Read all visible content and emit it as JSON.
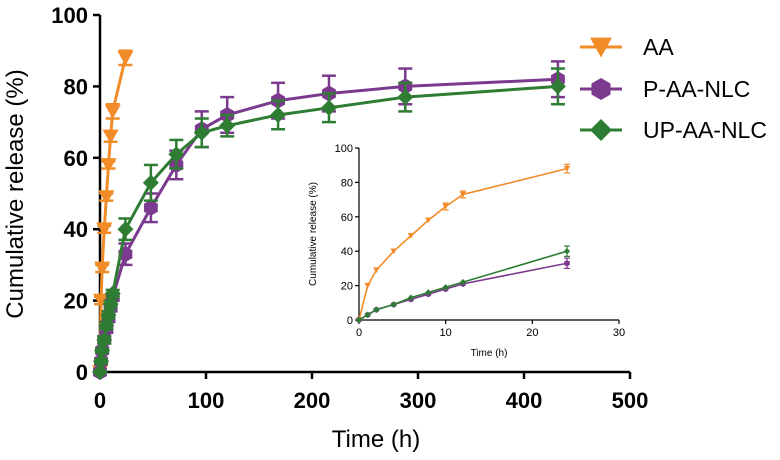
{
  "chart_data": [
    {
      "type": "line",
      "name": "main",
      "xlabel": "Time (h)",
      "ylabel": "Cumulative release (%)",
      "xlim": [
        0,
        500
      ],
      "ylim": [
        0,
        100
      ],
      "xticks": [
        "0",
        "100",
        "200",
        "300",
        "400",
        "500"
      ],
      "yticks": [
        "0",
        "20",
        "40",
        "60",
        "80",
        "100"
      ],
      "legend_position": "top-right",
      "series": [
        {
          "name": "AA",
          "color": "#F28C28",
          "marker": "triangle-down",
          "x": [
            0,
            1,
            2,
            4,
            6,
            8,
            10,
            12,
            24
          ],
          "y": [
            0,
            20,
            29,
            40,
            49,
            58,
            66,
            73,
            88
          ],
          "err": [
            0,
            1,
            1,
            1,
            1,
            1,
            1.5,
            2,
            2
          ]
        },
        {
          "name": "P-AA-NLC",
          "color": "#7B3A8E",
          "marker": "hexagon",
          "x": [
            0,
            1,
            2,
            4,
            6,
            8,
            10,
            12,
            24,
            48,
            72,
            96,
            120,
            168,
            216,
            288,
            432
          ],
          "y": [
            0,
            3,
            6,
            9,
            12,
            15,
            18,
            21,
            33,
            46,
            58,
            68,
            72,
            76,
            78,
            80,
            82
          ],
          "err": [
            0,
            0.5,
            0.5,
            1,
            1,
            1,
            1,
            1,
            3,
            4,
            4,
            5,
            5,
            5,
            5,
            5,
            5
          ]
        },
        {
          "name": "UP-AA-NLC",
          "color": "#2E7D32",
          "marker": "diamond",
          "x": [
            0,
            1,
            2,
            4,
            6,
            8,
            10,
            12,
            24,
            48,
            72,
            96,
            120,
            168,
            216,
            288,
            432
          ],
          "y": [
            0,
            3,
            6,
            9,
            13,
            16,
            19,
            22,
            40,
            53,
            61,
            67,
            69,
            72,
            74,
            77,
            80
          ],
          "err": [
            0,
            0.5,
            0.5,
            1,
            1,
            1,
            1,
            1,
            3,
            5,
            4,
            4,
            3,
            4,
            4,
            4,
            5
          ]
        }
      ]
    },
    {
      "type": "line",
      "name": "inset",
      "xlabel": "Time (h)",
      "ylabel": "Cumulative release (%)",
      "xlim": [
        0,
        30
      ],
      "ylim": [
        0,
        100
      ],
      "xticks": [
        "0",
        "10",
        "20",
        "30"
      ],
      "yticks": [
        "0",
        "20",
        "40",
        "60",
        "80",
        "100"
      ],
      "series": [
        {
          "name": "AA",
          "color": "#F28C28",
          "marker": "triangle-down",
          "x": [
            0,
            1,
            2,
            4,
            6,
            8,
            10,
            12,
            24
          ],
          "y": [
            0,
            20,
            29,
            40,
            49,
            58,
            66,
            73,
            88
          ],
          "err": [
            0,
            0,
            0,
            0,
            0,
            0,
            2,
            2,
            2.5
          ]
        },
        {
          "name": "P-AA-NLC",
          "color": "#7B3A8E",
          "marker": "hexagon",
          "x": [
            0,
            1,
            2,
            4,
            6,
            8,
            10,
            12,
            24
          ],
          "y": [
            0,
            3,
            6,
            9,
            12,
            15,
            18,
            21,
            33
          ],
          "err": [
            0,
            0,
            0,
            0,
            0,
            0,
            0,
            0,
            3
          ]
        },
        {
          "name": "UP-AA-NLC",
          "color": "#2E7D32",
          "marker": "diamond",
          "x": [
            0,
            1,
            2,
            4,
            6,
            8,
            10,
            12,
            24
          ],
          "y": [
            0,
            3,
            6,
            9,
            13,
            16,
            19,
            22,
            40
          ],
          "err": [
            0,
            0,
            0,
            0,
            0,
            0,
            0,
            0,
            3
          ]
        }
      ]
    }
  ]
}
